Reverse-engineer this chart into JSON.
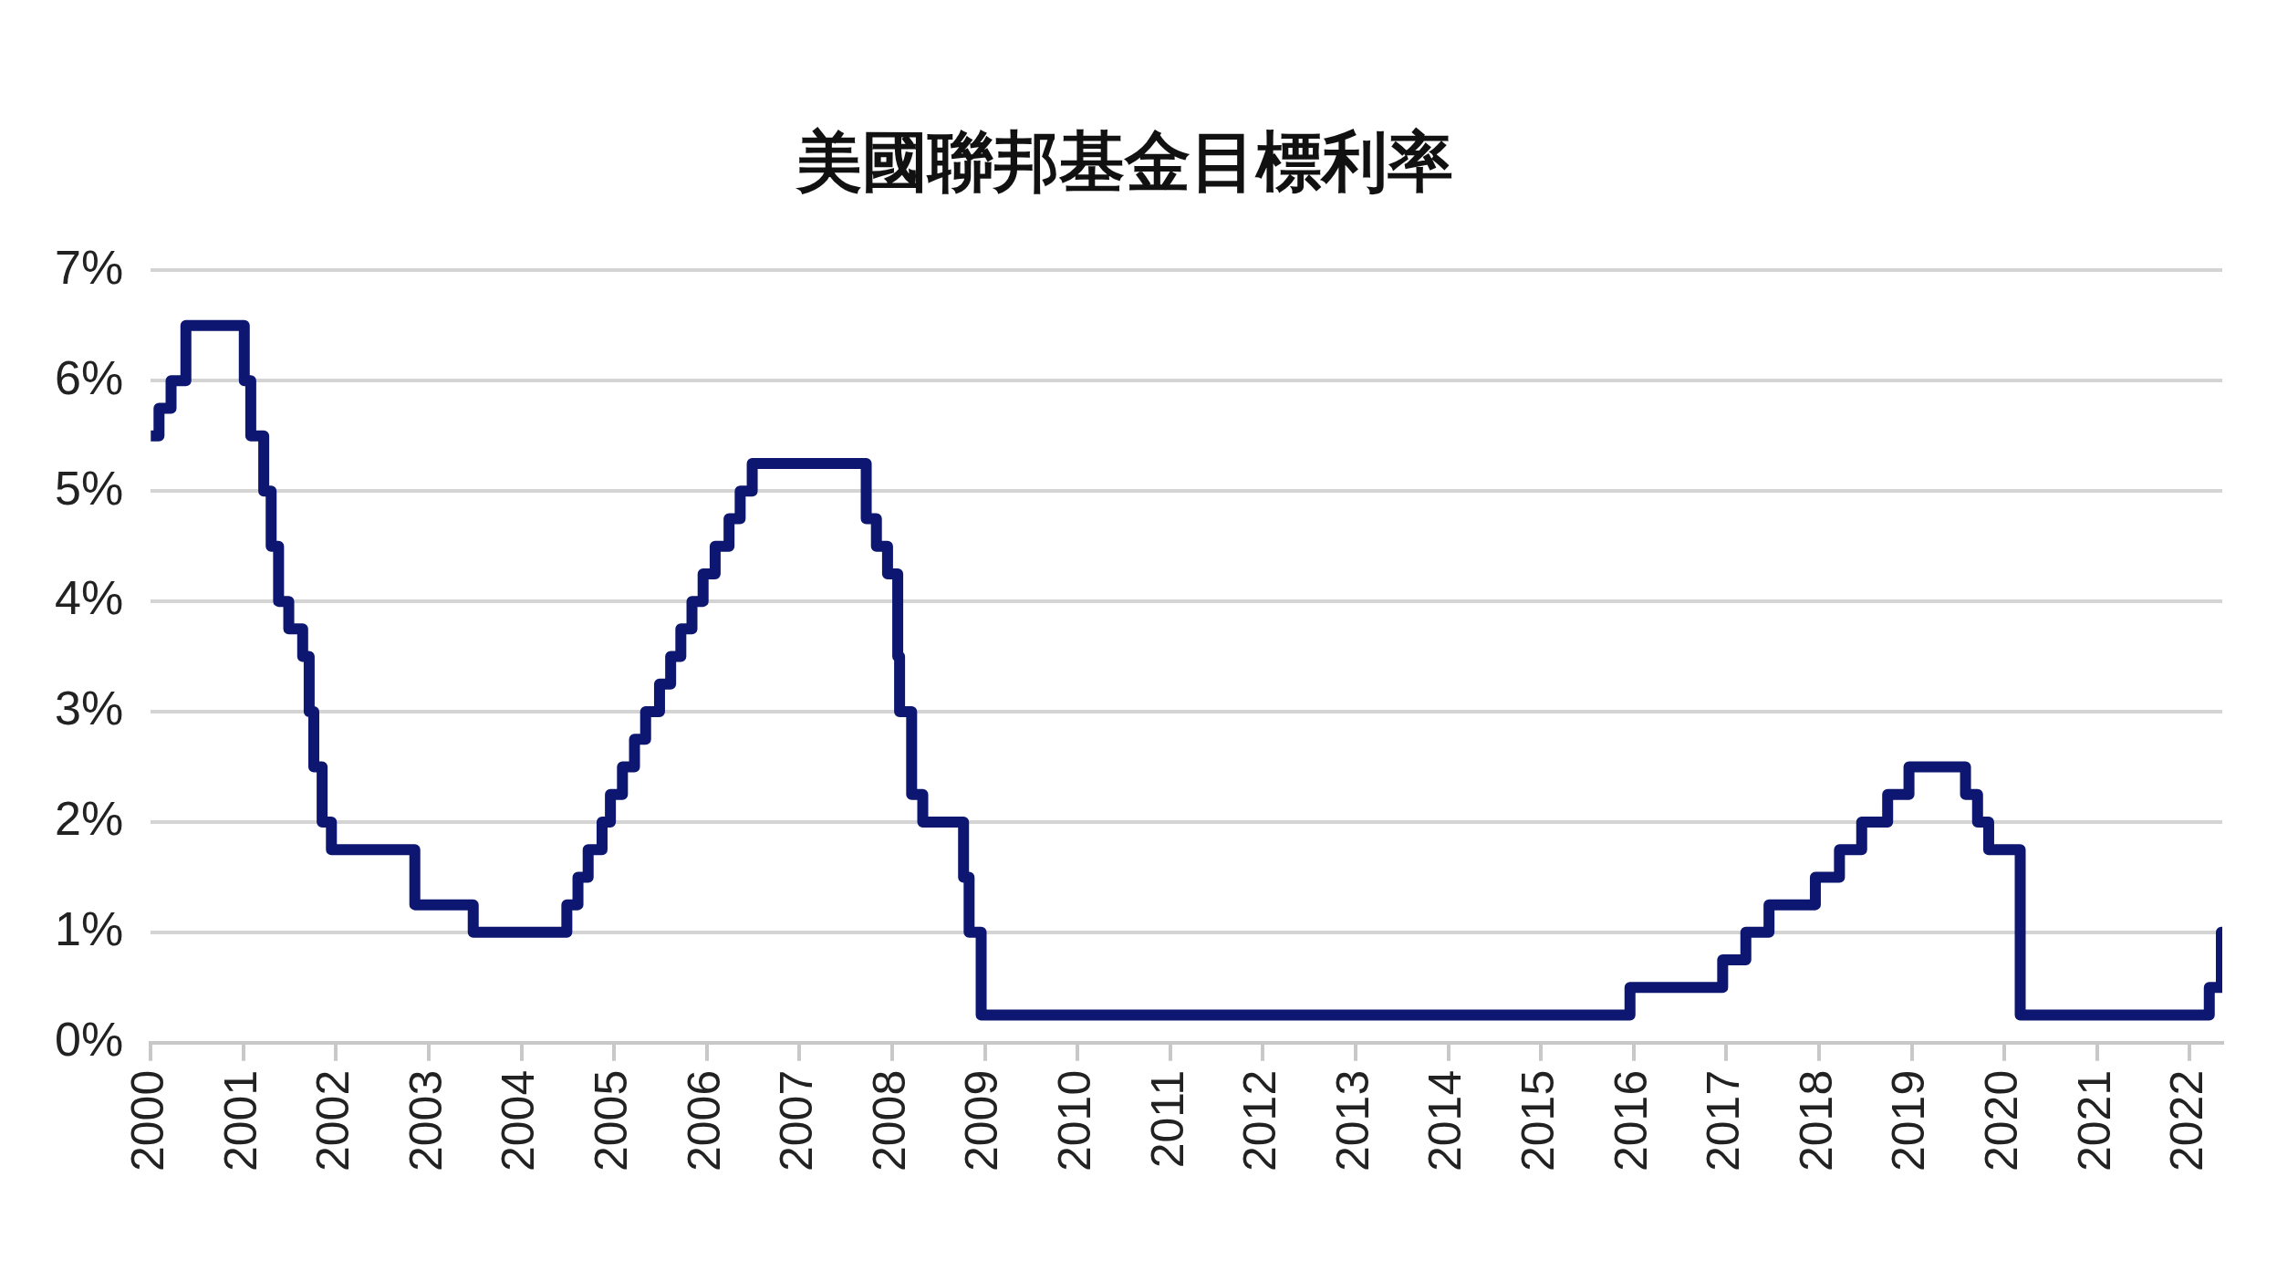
{
  "chart_data": {
    "type": "step",
    "title": "美國聯邦基金目標利率",
    "x": [
      2000.0,
      2000.09,
      2000.22,
      2000.38,
      2001.01,
      2001.08,
      2001.22,
      2001.3,
      2001.38,
      2001.49,
      2001.64,
      2001.71,
      2001.76,
      2001.85,
      2001.95,
      2002.85,
      2003.48,
      2004.49,
      2004.61,
      2004.72,
      2004.87,
      2004.96,
      2005.09,
      2005.22,
      2005.34,
      2005.49,
      2005.61,
      2005.72,
      2005.84,
      2005.96,
      2006.09,
      2006.24,
      2006.36,
      2006.49,
      2007.72,
      2007.83,
      2007.95,
      2008.06,
      2008.08,
      2008.21,
      2008.33,
      2008.77,
      2008.83,
      2008.96,
      2015.96,
      2016.96,
      2017.21,
      2017.46,
      2017.96,
      2018.22,
      2018.46,
      2018.74,
      2018.97,
      2019.58,
      2019.71,
      2019.83,
      2020.17,
      2022.21,
      2022.34,
      2022.35
    ],
    "series": [
      {
        "color": "#0d1670",
        "values": [
          5.5,
          5.75,
          6.0,
          6.5,
          6.0,
          5.5,
          5.0,
          4.5,
          4.0,
          3.75,
          3.5,
          3.0,
          2.5,
          2.0,
          1.75,
          1.25,
          1.0,
          1.25,
          1.5,
          1.75,
          2.0,
          2.25,
          2.5,
          2.75,
          3.0,
          3.25,
          3.5,
          3.75,
          4.0,
          4.25,
          4.5,
          4.75,
          5.0,
          5.25,
          4.75,
          4.5,
          4.25,
          3.5,
          3.0,
          2.25,
          2.0,
          1.5,
          1.0,
          0.25,
          0.5,
          0.75,
          1.0,
          1.25,
          1.5,
          1.75,
          2.0,
          2.25,
          2.5,
          2.25,
          2.0,
          1.75,
          0.25,
          0.5,
          1.0,
          1.0
        ]
      }
    ],
    "xlim": [
      2000,
      2022.35
    ],
    "xticks": [
      2000,
      2001,
      2002,
      2003,
      2004,
      2005,
      2006,
      2007,
      2008,
      2009,
      2010,
      2011,
      2012,
      2013,
      2014,
      2015,
      2016,
      2017,
      2018,
      2019,
      2020,
      2021,
      2022
    ],
    "ylim": [
      0,
      7
    ],
    "yticks": [
      {
        "value": 0,
        "label": "0%"
      },
      {
        "value": 1,
        "label": "1%"
      },
      {
        "value": 2,
        "label": "2%"
      },
      {
        "value": 3,
        "label": "3%"
      },
      {
        "value": 4,
        "label": "4%"
      },
      {
        "value": 5,
        "label": "5%"
      },
      {
        "value": 6,
        "label": "6%"
      },
      {
        "value": 7,
        "label": "7%"
      }
    ],
    "grid": "y"
  }
}
